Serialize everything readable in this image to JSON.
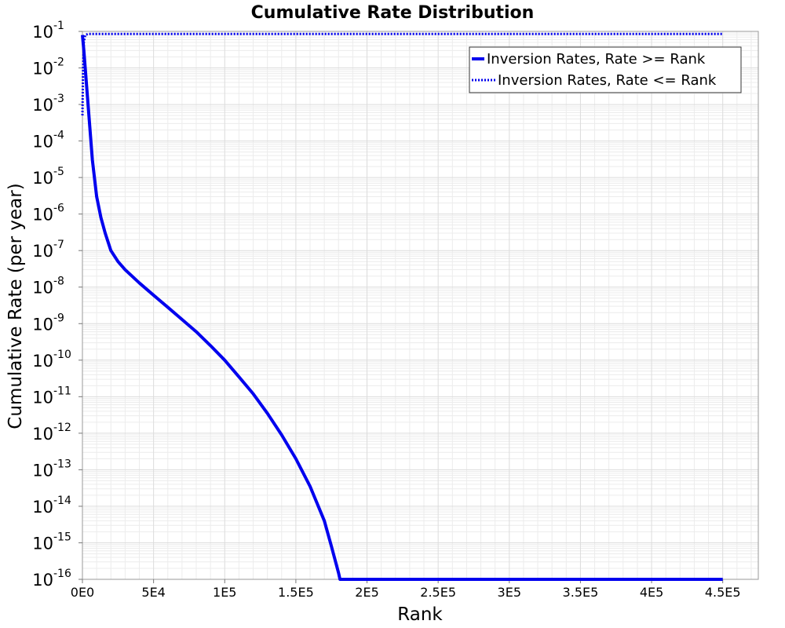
{
  "chart_data": {
    "type": "line",
    "title": "Cumulative Rate Distribution",
    "xlabel": "Rank",
    "ylabel": "Cumulative Rate (per year)",
    "xlim": [
      0,
      475000
    ],
    "ylim": [
      1e-16,
      0.1
    ],
    "y_scale": "log",
    "grid": true,
    "legend_position": "top-right",
    "x_ticks": [
      {
        "value": 0,
        "label": "0E0"
      },
      {
        "value": 50000,
        "label": "5E4"
      },
      {
        "value": 100000,
        "label": "1E5"
      },
      {
        "value": 150000,
        "label": "1.5E5"
      },
      {
        "value": 200000,
        "label": "2E5"
      },
      {
        "value": 250000,
        "label": "2.5E5"
      },
      {
        "value": 300000,
        "label": "3E5"
      },
      {
        "value": 350000,
        "label": "3.5E5"
      },
      {
        "value": 400000,
        "label": "4E5"
      },
      {
        "value": 450000,
        "label": "4.5E5"
      }
    ],
    "y_ticks": [
      {
        "base": "10",
        "exp": "-1"
      },
      {
        "base": "10",
        "exp": "-2"
      },
      {
        "base": "10",
        "exp": "-3"
      },
      {
        "base": "10",
        "exp": "-4"
      },
      {
        "base": "10",
        "exp": "-5"
      },
      {
        "base": "10",
        "exp": "-6"
      },
      {
        "base": "10",
        "exp": "-7"
      },
      {
        "base": "10",
        "exp": "-8"
      },
      {
        "base": "10",
        "exp": "-9"
      },
      {
        "base": "10",
        "exp": "-10"
      },
      {
        "base": "10",
        "exp": "-11"
      },
      {
        "base": "10",
        "exp": "-12"
      },
      {
        "base": "10",
        "exp": "-13"
      },
      {
        "base": "10",
        "exp": "-14"
      },
      {
        "base": "10",
        "exp": "-15"
      },
      {
        "base": "10",
        "exp": "-16"
      }
    ],
    "series": [
      {
        "name": "Inversion Rates, Rate >= Rank",
        "color": "#0000ee",
        "style": "solid",
        "points": [
          [
            0,
            0.08
          ],
          [
            1000,
            0.03
          ],
          [
            3000,
            0.003
          ],
          [
            5000,
            0.0003
          ],
          [
            7000,
            3e-05
          ],
          [
            10000,
            3e-06
          ],
          [
            13000,
            8e-07
          ],
          [
            16000,
            3e-07
          ],
          [
            20000,
            1e-07
          ],
          [
            25000,
            5e-08
          ],
          [
            30000,
            3e-08
          ],
          [
            40000,
            1.3e-08
          ],
          [
            50000,
            6e-09
          ],
          [
            60000,
            2.8e-09
          ],
          [
            70000,
            1.3e-09
          ],
          [
            80000,
            6e-10
          ],
          [
            90000,
            2.5e-10
          ],
          [
            100000,
            1e-10
          ],
          [
            110000,
            3.5e-11
          ],
          [
            120000,
            1.2e-11
          ],
          [
            130000,
            3.5e-12
          ],
          [
            140000,
            9e-13
          ],
          [
            150000,
            2e-13
          ],
          [
            160000,
            3.5e-14
          ],
          [
            170000,
            4e-15
          ],
          [
            175000,
            8e-16
          ],
          [
            180000,
            1.5e-16
          ],
          [
            181000,
            1e-16
          ],
          [
            450000,
            1e-16
          ]
        ]
      },
      {
        "name": "Inversion Rates, Rate <= Rank",
        "color": "#0000ee",
        "style": "dotted",
        "points": [
          [
            0,
            0.0005
          ],
          [
            500,
            0.01
          ],
          [
            1000,
            0.05
          ],
          [
            2000,
            0.08
          ],
          [
            4000,
            0.085
          ],
          [
            450000,
            0.085
          ]
        ]
      }
    ]
  }
}
